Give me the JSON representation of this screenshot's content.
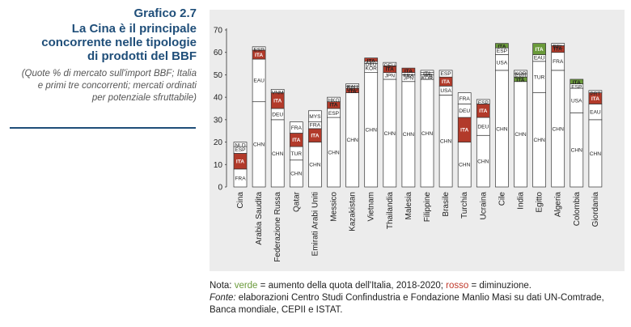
{
  "figure": {
    "number": "Grafico 2.7",
    "title_lines": [
      "La Cina è il principale",
      "concorrente nelle tipologie",
      "di prodotti del BBF"
    ],
    "subtitle_lines": [
      "(Quote % di mercato sull'import BBF; Italia",
      "e primi tre concorrenti; mercati ordinati",
      "per potenziale sfruttabile)"
    ]
  },
  "notes": {
    "nota_label": "Nota: ",
    "verde": "verde",
    "verde_text": " = aumento della quota dell'Italia, 2018-2020; ",
    "rosso": "rosso",
    "rosso_text": " = diminuzione.",
    "fonte_label": "Fonte:",
    "fonte_text": " elaborazioni Centro Studi Confindustria e Fondazione Manlio Masi su dati UN-Comtrade,",
    "fonte_line2": "Banca mondiale, CEPII e ISTAT."
  },
  "colors": {
    "panel": "#ececec",
    "bar_fill": "#ffffff",
    "bar_stroke": "#333333",
    "ita_decrease": "#b23a2a",
    "ita_increase": "#6a9a3a",
    "text": "#222222"
  },
  "chart_data": {
    "type": "bar",
    "stacked": true,
    "ylim": [
      0,
      70
    ],
    "yticks": [
      0,
      10,
      20,
      30,
      40,
      50,
      60,
      70
    ],
    "grid": false,
    "markets": [
      {
        "name": "Cina",
        "segments": [
          {
            "label": "FRA",
            "value": 8
          },
          {
            "label": "ITA",
            "value": 7,
            "ita": "down"
          },
          {
            "label": "ESP",
            "value": 3
          },
          {
            "label": "NLD",
            "value": 2
          }
        ]
      },
      {
        "name": "Arabia Saudita",
        "segments": [
          {
            "label": "CHN",
            "value": 38
          },
          {
            "label": "EAU",
            "value": 19
          },
          {
            "label": "ITA",
            "value": 4,
            "ita": "down"
          },
          {
            "label": "ESP",
            "value": 1.5
          }
        ]
      },
      {
        "name": "Federazione Russa",
        "segments": [
          {
            "label": "CHN",
            "value": 30
          },
          {
            "label": "DEU",
            "value": 5
          },
          {
            "label": "ITA",
            "value": 7,
            "ita": "down"
          },
          {
            "label": "VNM",
            "value": 1.5
          }
        ]
      },
      {
        "name": "Qatar",
        "segments": [
          {
            "label": "CHN",
            "value": 12
          },
          {
            "label": "TUR",
            "value": 6
          },
          {
            "label": "ITA",
            "value": 6,
            "ita": "down"
          },
          {
            "label": "FRA",
            "value": 5
          }
        ]
      },
      {
        "name": "Emirati Arabi Uniti",
        "segments": [
          {
            "label": "CHN",
            "value": 20
          },
          {
            "label": "ITA",
            "value": 6,
            "ita": "down"
          },
          {
            "label": "FRA",
            "value": 3
          },
          {
            "label": "MYS",
            "value": 5
          }
        ]
      },
      {
        "name": "Messico",
        "segments": [
          {
            "label": "CHN",
            "value": 31
          },
          {
            "label": "ESP",
            "value": 4
          },
          {
            "label": "ITA",
            "value": 3,
            "ita": "down"
          },
          {
            "label": "HKG",
            "value": 2
          }
        ]
      },
      {
        "name": "Kazakistan",
        "segments": [
          {
            "label": "CHN",
            "value": 42
          },
          {
            "label": "ITA",
            "value": 2,
            "ita": "down"
          },
          {
            "label": "DEU",
            "value": 1
          },
          {
            "label": "EAU",
            "value": 1
          }
        ]
      },
      {
        "name": "Vietnam",
        "segments": [
          {
            "label": "CHN",
            "value": 51
          },
          {
            "label": "KOR",
            "value": 4
          },
          {
            "label": "DEU",
            "value": 1
          },
          {
            "label": "ITA",
            "value": 1.5,
            "ita": "down"
          }
        ]
      },
      {
        "name": "Thailandia",
        "segments": [
          {
            "label": "CHN",
            "value": 48
          },
          {
            "label": "JPN",
            "value": 3
          },
          {
            "label": "ITA",
            "value": 3,
            "ita": "down"
          },
          {
            "label": "DEU",
            "value": 1.5
          }
        ]
      },
      {
        "name": "Malesia",
        "segments": [
          {
            "label": "CHN",
            "value": 47
          },
          {
            "label": "JPN",
            "value": 3
          },
          {
            "label": "FRA",
            "value": 1
          },
          {
            "label": "ITA",
            "value": 2,
            "ita": "down"
          }
        ]
      },
      {
        "name": "Filippine",
        "segments": [
          {
            "label": "CHN",
            "value": 48
          },
          {
            "label": "KOR",
            "value": 2
          },
          {
            "label": "JPN",
            "value": 1
          },
          {
            "label": "ITA",
            "value": 1
          }
        ]
      },
      {
        "name": "Brasile",
        "segments": [
          {
            "label": "CHN",
            "value": 41
          },
          {
            "label": "USA",
            "value": 4
          },
          {
            "label": "ITA",
            "value": 4,
            "ita": "down"
          },
          {
            "label": "ESP",
            "value": 3
          }
        ]
      },
      {
        "name": "Turchia",
        "segments": [
          {
            "label": "CHN",
            "value": 20
          },
          {
            "label": "ITA",
            "value": 11,
            "ita": "down"
          },
          {
            "label": "DEU",
            "value": 6
          },
          {
            "label": "FRA",
            "value": 5
          }
        ]
      },
      {
        "name": "Ucraina",
        "segments": [
          {
            "label": "CHN",
            "value": 23
          },
          {
            "label": "DEU",
            "value": 8
          },
          {
            "label": "ITA",
            "value": 6,
            "ita": "down"
          },
          {
            "label": "ESP",
            "value": 2
          }
        ]
      },
      {
        "name": "Cile",
        "segments": [
          {
            "label": "CHN",
            "value": 52
          },
          {
            "label": "USA",
            "value": 7
          },
          {
            "label": "ESP",
            "value": 3
          },
          {
            "label": "ITA",
            "value": 2,
            "ita": "up"
          }
        ]
      },
      {
        "name": "India",
        "segments": [
          {
            "label": "CHN",
            "value": 47
          },
          {
            "label": "ITA",
            "value": 2,
            "ita": "up"
          },
          {
            "label": "ESP",
            "value": 1.5
          },
          {
            "label": "KOR",
            "value": 1.5
          }
        ]
      },
      {
        "name": "Egitto",
        "segments": [
          {
            "label": "CHN",
            "value": 42
          },
          {
            "label": "TUR",
            "value": 14
          },
          {
            "label": "EAU",
            "value": 3
          },
          {
            "label": "ITA",
            "value": 5,
            "ita": "up"
          }
        ]
      },
      {
        "name": "Algeria",
        "segments": [
          {
            "label": "CHN",
            "value": 52
          },
          {
            "label": "FRA",
            "value": 8
          },
          {
            "label": "ITA",
            "value": 3,
            "ita": "down"
          },
          {
            "label": "BEL",
            "value": 1
          }
        ]
      },
      {
        "name": "Colombia",
        "segments": [
          {
            "label": "CHN",
            "value": 33
          },
          {
            "label": "USA",
            "value": 11
          },
          {
            "label": "ESP",
            "value": 2
          },
          {
            "label": "ITA",
            "value": 2,
            "ita": "up"
          }
        ]
      },
      {
        "name": "Giordania",
        "segments": [
          {
            "label": "CHN",
            "value": 30
          },
          {
            "label": "EAU",
            "value": 7
          },
          {
            "label": "ITA",
            "value": 5,
            "ita": "down"
          },
          {
            "label": "PRT",
            "value": 1
          }
        ]
      }
    ]
  }
}
